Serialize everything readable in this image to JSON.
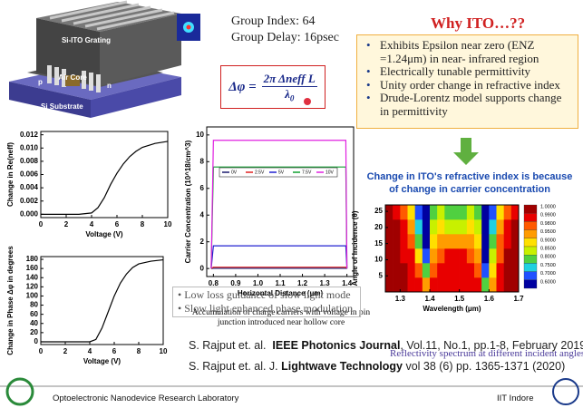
{
  "device": {
    "grating": "Si-ITO Grating",
    "core": "Air Core",
    "substrate": "Si Substrate",
    "p": "p",
    "n": "n"
  },
  "group": {
    "index": "Group Index: 64",
    "delay": "Group Delay: 16psec"
  },
  "equation": {
    "lhs": "Δφ =",
    "numerator": "2π Δneff L",
    "denominator": "λ",
    "denominator_sub": "0"
  },
  "why_ito": {
    "title": "Why ITO…??",
    "bullets": [
      "Exhibits Epsilon near zero (ENZ =1.24μm)  in near- infrared region",
      "Electrically tunable permittivity",
      "Unity order change in refractive index",
      "Drude-Lorentz model supports change in permittivity"
    ]
  },
  "ito_title": "Change in ITO's refractive index is because of change in carrier concentration",
  "reflect_caption": "Reflectivity spectrum at different incident angles",
  "carrier_caption": "Accumulation of charge carriers with voltage in pin junction introduced near hollow core",
  "slow_bullets": [
    "Low loss guidance of slow light mode",
    "Slow light enhanced phase modulation"
  ],
  "citations": [
    {
      "authors": "S. Rajput et. al.",
      "journal": "IEEE Photonics Journal",
      "details": ", Vol.11, No.1, pp.1-8, February 2019"
    },
    {
      "authors": "S. Rajput et. al. J.",
      "journal": "Lightwave Technology",
      "details": " vol 38 (6) pp. 1365-1371 (2020)"
    }
  ],
  "footer": {
    "lab": "Optoelectronic Nanodevice Research Laboratory",
    "institute": "IIT Indore"
  },
  "chart_data": [
    {
      "type": "line",
      "xlabel": "Voltage (V)",
      "ylabel": "Change in Re(neff)",
      "color": "#000000",
      "x": [
        0,
        1,
        2,
        3,
        4,
        4.5,
        5,
        5.5,
        6,
        6.5,
        7,
        7.5,
        8,
        9,
        10
      ],
      "values": [
        0,
        0,
        0,
        0,
        0.0002,
        0.001,
        0.0025,
        0.0045,
        0.0062,
        0.0076,
        0.0087,
        0.0095,
        0.0101,
        0.0107,
        0.011
      ],
      "xlim": [
        0,
        10
      ],
      "xticks": [
        0,
        2,
        4,
        6,
        8,
        10
      ],
      "ylim": [
        -0.0005,
        0.0125
      ],
      "yticks": [
        {
          "value": 0,
          "label": "0.000"
        },
        0.002,
        0.004,
        0.006,
        0.008,
        {
          "value": 0.01,
          "label": "0.010"
        },
        0.012
      ]
    },
    {
      "type": "line",
      "xlabel": "Horizontal Distance (μm)",
      "ylabel": "Carrier Concentration (10^18/cm^3)",
      "x": [
        0.79,
        0.8,
        1.395,
        1.4
      ],
      "series": [
        {
          "name": "0V",
          "color": "#1a1a6e",
          "values": [
            0,
            0.02,
            0.02,
            0
          ]
        },
        {
          "name": "2.5V",
          "color": "#e02020",
          "values": [
            0,
            0.1,
            0.1,
            0
          ]
        },
        {
          "name": "5V",
          "color": "#2020d0",
          "values": [
            0,
            1.7,
            1.7,
            0
          ]
        },
        {
          "name": "7.5V",
          "color": "#10a030",
          "values": [
            0,
            7.6,
            7.6,
            0
          ]
        },
        {
          "name": "10V",
          "color": "#e020e0",
          "values": [
            0,
            9.6,
            9.6,
            0
          ]
        }
      ],
      "xlim": [
        0.77,
        1.43
      ],
      "xticks": [
        0.8,
        0.9,
        {
          "value": 1,
          "label": "1.0"
        },
        1.1,
        1.2,
        1.3,
        1.4
      ],
      "ylim": [
        -0.6,
        10.6
      ],
      "yticks": [
        0,
        2,
        4,
        6,
        8,
        10
      ]
    },
    {
      "type": "line",
      "xlabel": "Voltage (V)",
      "ylabel": "Change in Phase Δφ in degrees",
      "color": "#000000",
      "x": [
        0,
        1,
        2,
        3,
        4,
        4.5,
        5,
        5.5,
        6,
        6.5,
        7,
        7.5,
        8,
        9,
        10
      ],
      "values": [
        0,
        0,
        0,
        0,
        0,
        5,
        30,
        65,
        100,
        128,
        148,
        162,
        170,
        176,
        179
      ],
      "xlim": [
        0,
        10
      ],
      "xticks": [
        0,
        2,
        4,
        6,
        8,
        10
      ],
      "ylim": [
        -6,
        186
      ],
      "yticks": [
        0,
        20,
        40,
        60,
        80,
        100,
        120,
        140,
        160,
        180
      ]
    },
    {
      "type": "heatmap",
      "xlabel": "Wavelength (μm)",
      "ylabel": "Angle of Incidence (θ)",
      "x": [
        1.2625,
        1.2875,
        1.3125,
        1.3375,
        1.3625,
        1.3875,
        1.4125,
        1.4375,
        1.4625,
        1.4875,
        1.5125,
        1.5375,
        1.5625,
        1.5875,
        1.6125,
        1.6375,
        1.6625,
        1.6875
      ],
      "y": [
        2.25,
        6.75,
        11.25,
        15.75,
        20.25,
        24.75
      ],
      "z": [
        [
          1,
          1,
          1,
          0.99,
          0.99,
          0.95,
          0.99,
          0.99,
          0.99,
          0.99,
          0.99,
          0.99,
          0.99,
          0.8,
          0.95,
          0.99,
          1,
          1
        ],
        [
          1,
          1,
          1,
          0.99,
          0.98,
          0.8,
          0.98,
          0.99,
          0.99,
          0.99,
          0.99,
          0.99,
          0.98,
          0.7,
          0.9,
          0.99,
          1,
          1
        ],
        [
          1,
          1,
          0.99,
          0.99,
          0.9,
          0.7,
          0.95,
          0.98,
          0.99,
          0.99,
          0.99,
          0.98,
          0.95,
          0.6,
          0.85,
          0.98,
          1,
          1
        ],
        [
          1,
          1,
          0.99,
          0.98,
          0.8,
          0.6,
          0.9,
          0.95,
          0.95,
          0.95,
          0.95,
          0.95,
          0.9,
          0.6,
          0.8,
          0.98,
          0.99,
          1
        ],
        [
          1,
          1,
          0.99,
          0.95,
          0.75,
          0.6,
          0.85,
          0.9,
          0.85,
          0.85,
          0.85,
          0.9,
          0.85,
          0.6,
          0.75,
          0.95,
          0.99,
          1
        ],
        [
          1,
          0.99,
          0.98,
          0.9,
          0.7,
          0.6,
          0.8,
          0.85,
          0.8,
          0.8,
          0.8,
          0.85,
          0.8,
          0.6,
          0.7,
          0.9,
          0.98,
          0.99
        ]
      ],
      "xlim": [
        1.25,
        1.7
      ],
      "xticks": [
        1.3,
        1.4,
        1.5,
        1.6,
        1.7
      ],
      "ylim": [
        0,
        27
      ],
      "yticks": [
        5,
        10,
        15,
        20,
        25
      ],
      "colorbar_ticks": [
        {
          "value": 1,
          "label": "1.0000"
        },
        {
          "value": 0.99,
          "label": "0.9900"
        },
        {
          "value": 0.98,
          "label": "0.9800"
        },
        {
          "value": 0.95,
          "label": "0.9500"
        },
        {
          "value": 0.9,
          "label": "0.9000"
        },
        {
          "value": 0.85,
          "label": "0.8500"
        },
        {
          "value": 0.8,
          "label": "0.8000"
        },
        {
          "value": 0.75,
          "label": "0.7500"
        },
        {
          "value": 0.7,
          "label": "0.7000"
        },
        {
          "value": 0.6,
          "label": "0.6000"
        }
      ],
      "colorbar_colors": [
        "#a00000",
        "#e80000",
        "#ff5a00",
        "#ff9c00",
        "#ffe000",
        "#c8f000",
        "#50d040",
        "#20d0e0",
        "#2050ff",
        "#0000a0"
      ]
    }
  ]
}
